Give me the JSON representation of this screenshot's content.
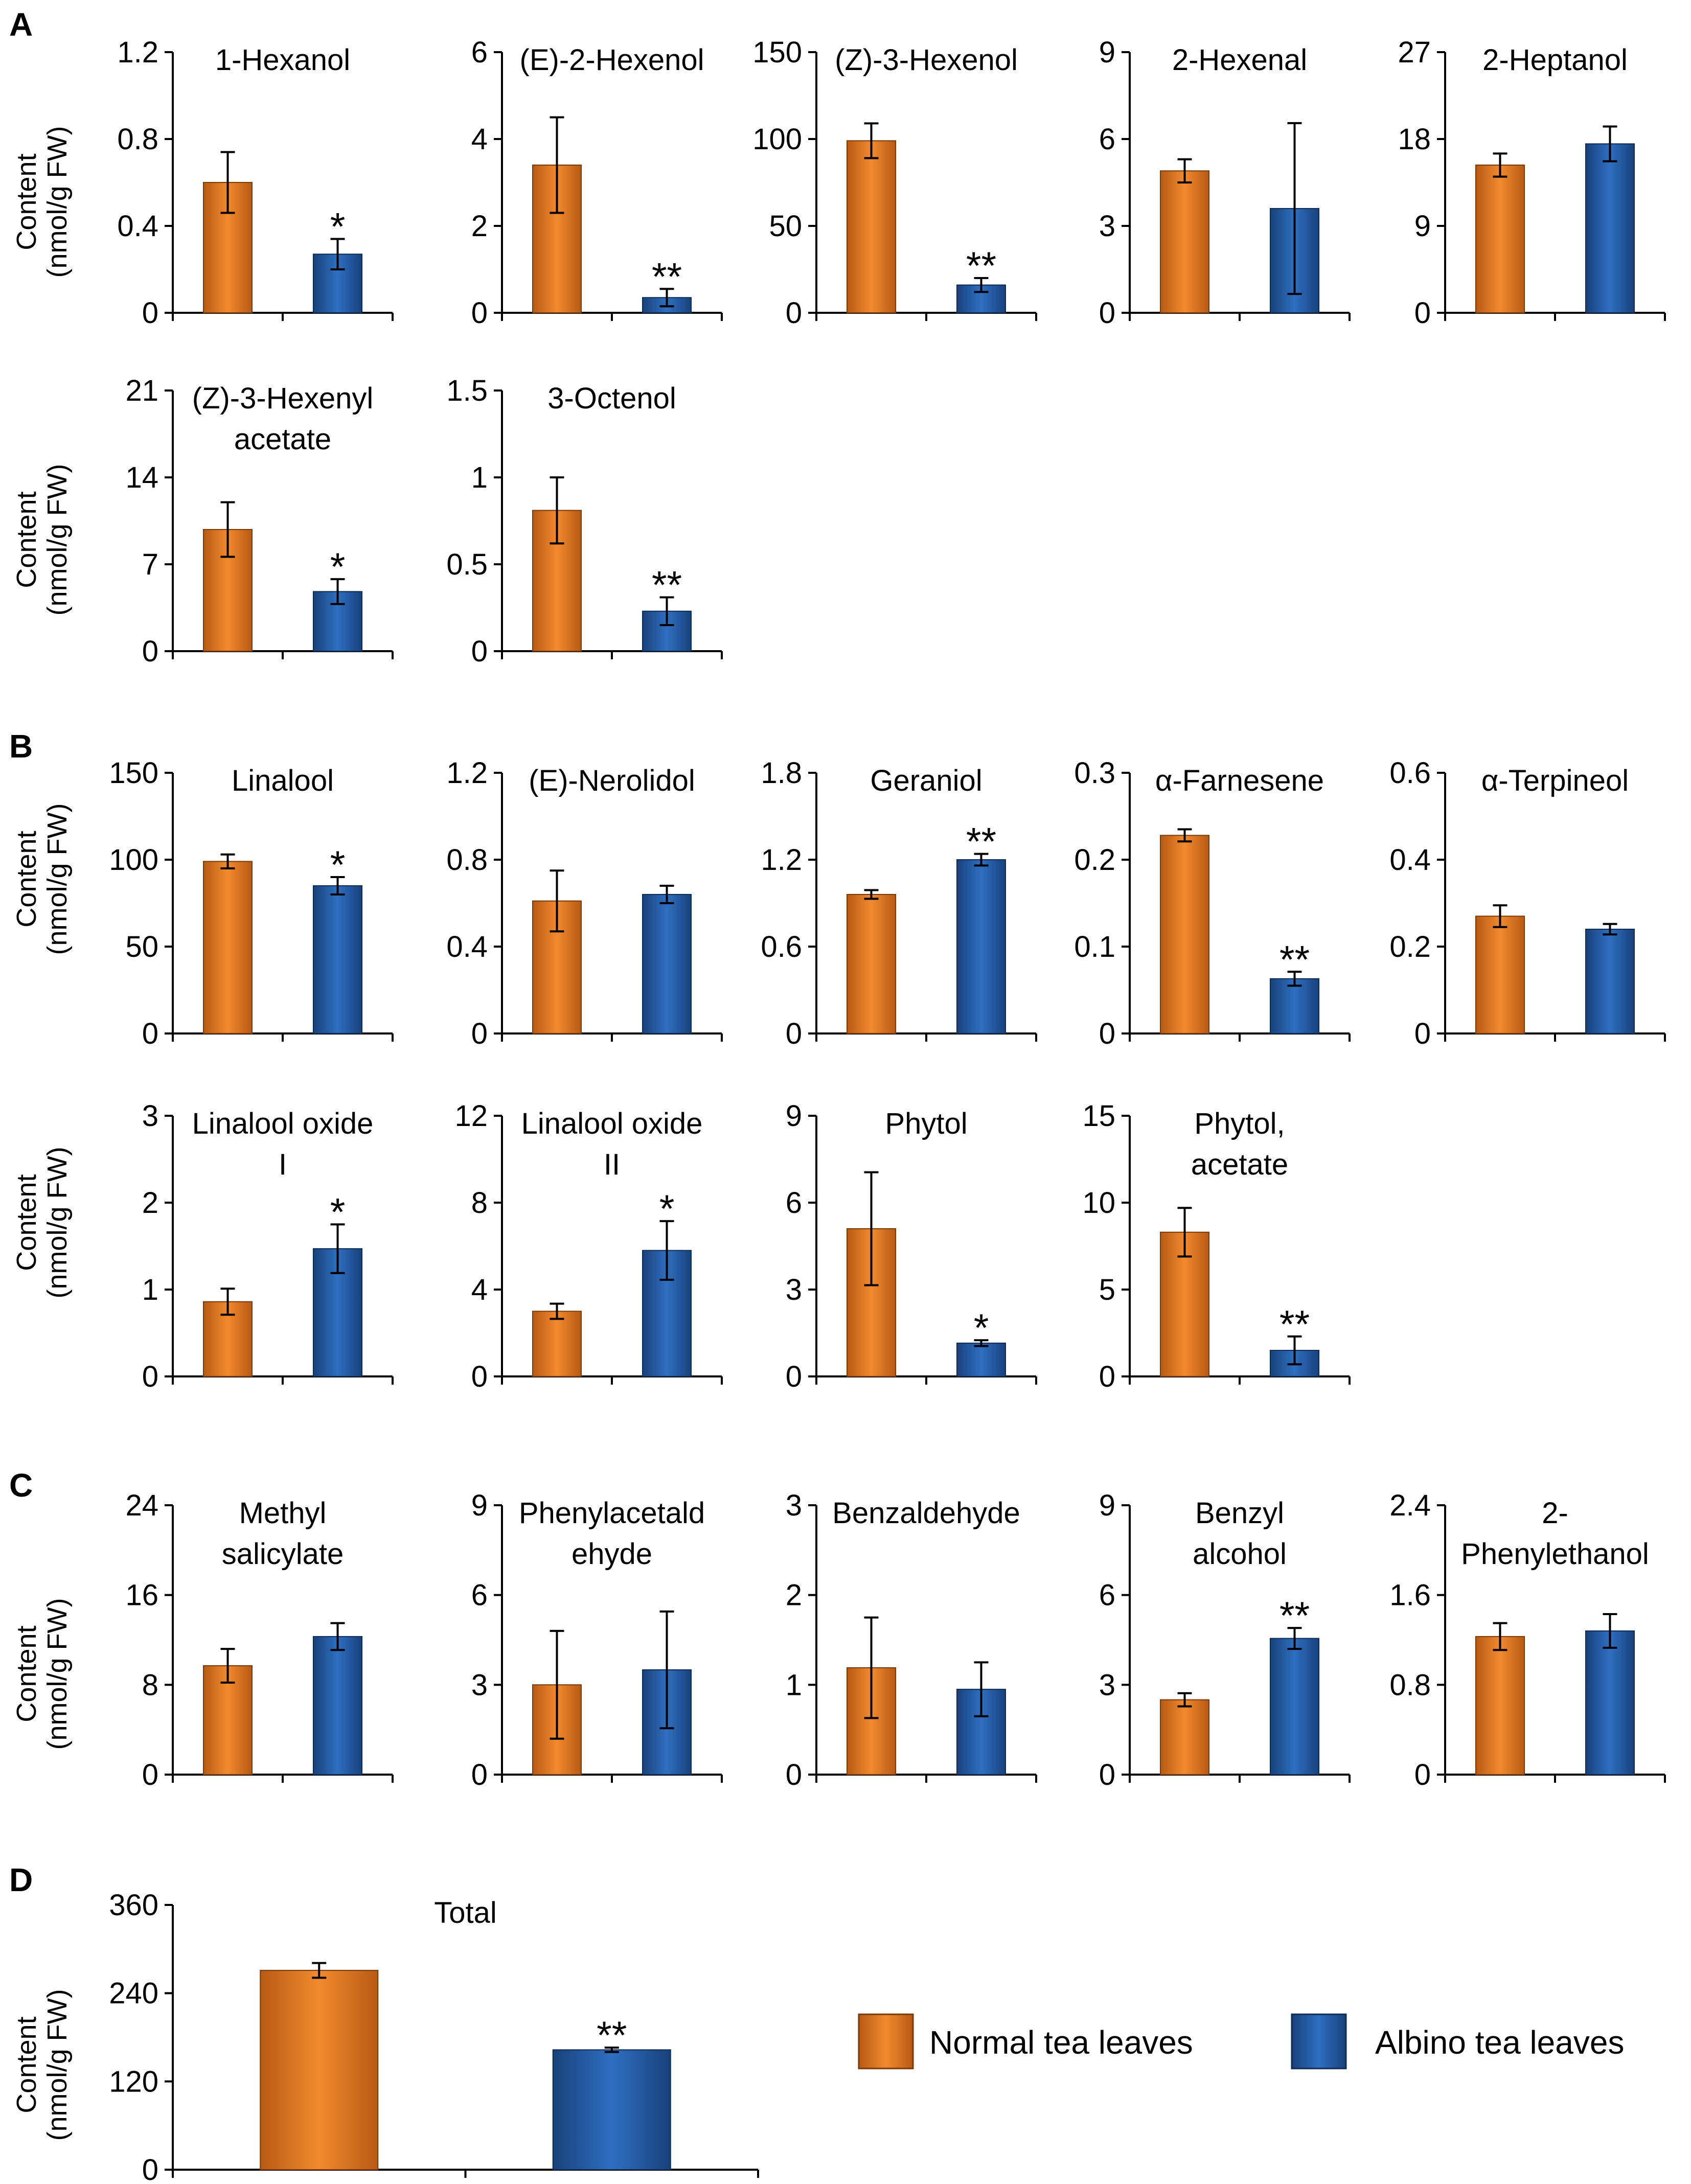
{
  "colors": {
    "normal": "#F28A2E",
    "albino": "#2E6FC2",
    "normal_dark": "#B85A14",
    "albino_dark": "#18417A"
  },
  "ylabel_lines": [
    "Content",
    "(nmol/g FW)"
  ],
  "legend": {
    "normal": "Normal tea leaves",
    "albino": "Albino tea leaves"
  },
  "panels": [
    {
      "letter": "A"
    },
    {
      "letter": "B"
    },
    {
      "letter": "C"
    },
    {
      "letter": "D"
    }
  ],
  "chart_data": [
    {
      "type": "bar",
      "panel": "A",
      "title": [
        "1-Hexanol"
      ],
      "ylim": [
        0,
        1.2
      ],
      "yticks": [
        "0",
        "0.4",
        "0.8",
        "1.2"
      ],
      "categories": [
        "Normal tea leaves",
        "Albino tea leaves"
      ],
      "values": [
        0.6,
        0.27
      ],
      "errors": [
        0.14,
        0.07
      ],
      "sig": "*"
    },
    {
      "type": "bar",
      "panel": "A",
      "title": [
        "(E)-2-Hexenol"
      ],
      "ylim": [
        0,
        6
      ],
      "yticks": [
        "0",
        "2",
        "4",
        "6"
      ],
      "categories": [
        "Normal tea leaves",
        "Albino tea leaves"
      ],
      "values": [
        3.4,
        0.35
      ],
      "errors": [
        1.1,
        0.2
      ],
      "sig": "**"
    },
    {
      "type": "bar",
      "panel": "A",
      "title": [
        "(Z)-3-Hexenol"
      ],
      "ylim": [
        0,
        150
      ],
      "yticks": [
        "0",
        "50",
        "100",
        "150"
      ],
      "categories": [
        "Normal tea leaves",
        "Albino tea leaves"
      ],
      "values": [
        99,
        16
      ],
      "errors": [
        10,
        4
      ],
      "sig": "**"
    },
    {
      "type": "bar",
      "panel": "A",
      "title": [
        "2-Hexenal"
      ],
      "ylim": [
        0,
        9
      ],
      "yticks": [
        "0",
        "3",
        "6",
        "9"
      ],
      "categories": [
        "Normal tea leaves",
        "Albino tea leaves"
      ],
      "values": [
        4.9,
        3.6
      ],
      "errors": [
        0.4,
        2.95
      ],
      "sig": ""
    },
    {
      "type": "bar",
      "panel": "A",
      "title": [
        "2-Heptanol"
      ],
      "ylim": [
        0,
        27
      ],
      "yticks": [
        "0",
        "9",
        "18",
        "27"
      ],
      "categories": [
        "Normal tea leaves",
        "Albino tea leaves"
      ],
      "values": [
        15.3,
        17.5
      ],
      "errors": [
        1.2,
        1.8
      ],
      "sig": ""
    },
    {
      "type": "bar",
      "panel": "A",
      "title": [
        "(Z)-3-Hexenyl",
        "acetate"
      ],
      "ylim": [
        0,
        21
      ],
      "yticks": [
        "0",
        "7",
        "14",
        "21"
      ],
      "categories": [
        "Normal tea leaves",
        "Albino tea leaves"
      ],
      "values": [
        9.8,
        4.8
      ],
      "errors": [
        2.2,
        1.0
      ],
      "sig": "*"
    },
    {
      "type": "bar",
      "panel": "A",
      "title": [
        "3-Octenol"
      ],
      "ylim": [
        0,
        1.5
      ],
      "yticks": [
        "0",
        "0.5",
        "1",
        "1.5"
      ],
      "categories": [
        "Normal tea leaves",
        "Albino tea leaves"
      ],
      "values": [
        0.81,
        0.23
      ],
      "errors": [
        0.19,
        0.08
      ],
      "sig": "**"
    },
    {
      "type": "bar",
      "panel": "B",
      "title": [
        "Linalool"
      ],
      "ylim": [
        0,
        150
      ],
      "yticks": [
        "0",
        "50",
        "100",
        "150"
      ],
      "categories": [
        "Normal tea leaves",
        "Albino tea leaves"
      ],
      "values": [
        99,
        85
      ],
      "errors": [
        4,
        5
      ],
      "sig": "*"
    },
    {
      "type": "bar",
      "panel": "B",
      "title": [
        "(E)-Nerolidol"
      ],
      "ylim": [
        0,
        1.2
      ],
      "yticks": [
        "0",
        "0.4",
        "0.8",
        "1.2"
      ],
      "categories": [
        "Normal tea leaves",
        "Albino tea leaves"
      ],
      "values": [
        0.61,
        0.64
      ],
      "errors": [
        0.14,
        0.04
      ],
      "sig": ""
    },
    {
      "type": "bar",
      "panel": "B",
      "title": [
        "Geraniol"
      ],
      "ylim": [
        0,
        1.8
      ],
      "yticks": [
        "0",
        "0.6",
        "1.2",
        "1.8"
      ],
      "categories": [
        "Normal tea leaves",
        "Albino tea leaves"
      ],
      "values": [
        0.96,
        1.2
      ],
      "errors": [
        0.03,
        0.04
      ],
      "sig": "**"
    },
    {
      "type": "bar",
      "panel": "B",
      "title": [
        "α-Farnesene"
      ],
      "ylim": [
        0,
        0.3
      ],
      "yticks": [
        "0",
        "0.1",
        "0.2",
        "0.3"
      ],
      "categories": [
        "Normal tea leaves",
        "Albino tea leaves"
      ],
      "values": [
        0.228,
        0.063
      ],
      "errors": [
        0.007,
        0.008
      ],
      "sig": "**"
    },
    {
      "type": "bar",
      "panel": "B",
      "title": [
        "α-Terpineol"
      ],
      "ylim": [
        0,
        0.6
      ],
      "yticks": [
        "0",
        "0.2",
        "0.4",
        "0.6"
      ],
      "categories": [
        "Normal tea leaves",
        "Albino tea leaves"
      ],
      "values": [
        0.27,
        0.24
      ],
      "errors": [
        0.025,
        0.012
      ],
      "sig": ""
    },
    {
      "type": "bar",
      "panel": "B",
      "title": [
        "Linalool oxide",
        "I"
      ],
      "ylim": [
        0,
        3
      ],
      "yticks": [
        "0",
        "1",
        "2",
        "3"
      ],
      "categories": [
        "Normal tea leaves",
        "Albino tea leaves"
      ],
      "values": [
        0.86,
        1.47
      ],
      "errors": [
        0.15,
        0.28
      ],
      "sig": "*"
    },
    {
      "type": "bar",
      "panel": "B",
      "title": [
        "Linalool oxide",
        "II"
      ],
      "ylim": [
        0,
        12
      ],
      "yticks": [
        "0",
        "4",
        "8",
        "12"
      ],
      "categories": [
        "Normal tea leaves",
        "Albino tea leaves"
      ],
      "values": [
        3.0,
        5.8
      ],
      "errors": [
        0.35,
        1.35
      ],
      "sig": "*"
    },
    {
      "type": "bar",
      "panel": "B",
      "title": [
        "Phytol"
      ],
      "ylim": [
        0,
        9
      ],
      "yticks": [
        "0",
        "3",
        "6",
        "9"
      ],
      "categories": [
        "Normal tea leaves",
        "Albino tea leaves"
      ],
      "values": [
        5.1,
        1.15
      ],
      "errors": [
        1.95,
        0.1
      ],
      "sig": "*"
    },
    {
      "type": "bar",
      "panel": "B",
      "title": [
        "Phytol,",
        "acetate"
      ],
      "ylim": [
        0,
        15
      ],
      "yticks": [
        "0",
        "5",
        "10",
        "15"
      ],
      "categories": [
        "Normal tea leaves",
        "Albino tea leaves"
      ],
      "values": [
        8.3,
        1.5
      ],
      "errors": [
        1.4,
        0.8
      ],
      "sig": "**"
    },
    {
      "type": "bar",
      "panel": "C",
      "title": [
        "Methyl",
        "salicylate"
      ],
      "ylim": [
        0,
        24
      ],
      "yticks": [
        "0",
        "8",
        "16",
        "24"
      ],
      "categories": [
        "Normal tea leaves",
        "Albino tea leaves"
      ],
      "values": [
        9.7,
        12.3
      ],
      "errors": [
        1.5,
        1.2
      ],
      "sig": ""
    },
    {
      "type": "bar",
      "panel": "C",
      "title": [
        "Phenylacetald",
        "ehyde"
      ],
      "ylim": [
        0,
        9
      ],
      "yticks": [
        "0",
        "3",
        "6",
        "9"
      ],
      "categories": [
        "Normal tea leaves",
        "Albino tea leaves"
      ],
      "values": [
        3.0,
        3.5
      ],
      "errors": [
        1.8,
        1.95
      ],
      "sig": ""
    },
    {
      "type": "bar",
      "panel": "C",
      "title": [
        "Benzaldehyde"
      ],
      "ylim": [
        0,
        3
      ],
      "yticks": [
        "0",
        "1",
        "2",
        "3"
      ],
      "categories": [
        "Normal tea leaves",
        "Albino tea leaves"
      ],
      "values": [
        1.19,
        0.95
      ],
      "errors": [
        0.56,
        0.3
      ],
      "sig": ""
    },
    {
      "type": "bar",
      "panel": "C",
      "title": [
        "Benzyl",
        "alcohol"
      ],
      "ylim": [
        0,
        9
      ],
      "yticks": [
        "0",
        "3",
        "6",
        "9"
      ],
      "categories": [
        "Normal tea leaves",
        "Albino tea leaves"
      ],
      "values": [
        2.5,
        4.55
      ],
      "errors": [
        0.22,
        0.35
      ],
      "sig": "**"
    },
    {
      "type": "bar",
      "panel": "C",
      "title": [
        "2-",
        "Phenylethanol"
      ],
      "ylim": [
        0,
        2.4
      ],
      "yticks": [
        "0",
        "0.8",
        "1.6",
        "2.4"
      ],
      "categories": [
        "Normal tea leaves",
        "Albino tea leaves"
      ],
      "values": [
        1.23,
        1.28
      ],
      "errors": [
        0.12,
        0.15
      ],
      "sig": ""
    },
    {
      "type": "bar",
      "panel": "D",
      "title": [
        "Total"
      ],
      "ylim": [
        0,
        360
      ],
      "yticks": [
        "0",
        "120",
        "240",
        "360"
      ],
      "categories": [
        "Normal tea leaves",
        "Albino tea leaves"
      ],
      "values": [
        271,
        163
      ],
      "errors": [
        10,
        3
      ],
      "sig": "**"
    }
  ]
}
